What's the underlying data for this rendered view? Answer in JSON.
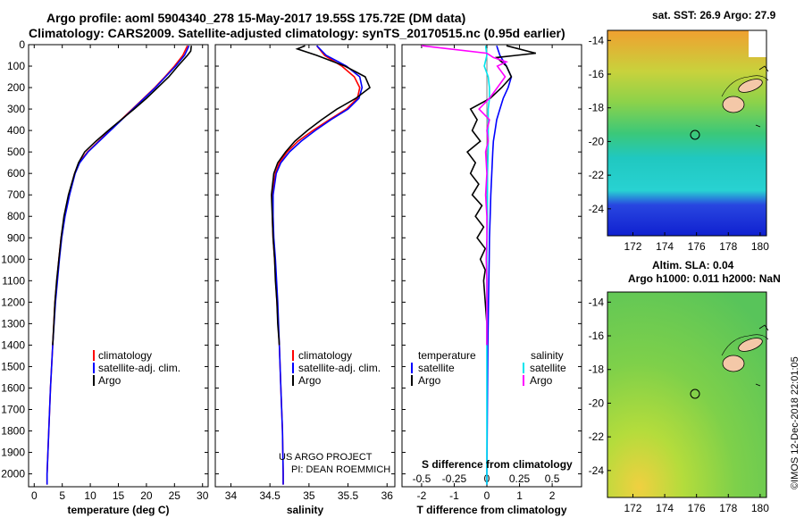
{
  "header": {
    "line1": "Argo profile: aoml 5904340_278 15-May-2017 19.55S 175.72E (DM data)",
    "line2": "Climatology: CARS2009. Satellite-adjusted climatology: synTS_20170515.nc (0.95d earlier)"
  },
  "maps": {
    "sst_title": "sat. SST: 26.9 Argo: 27.9",
    "sla_title1": "Altim. SLA: 0.04",
    "sla_title2": "Argo h1000: 0.011 h2000: NaN",
    "lon_ticks": [
      "172",
      "174",
      "176",
      "178",
      "180"
    ],
    "lat_ticks": [
      "-14",
      "-16",
      "-18",
      "-20",
      "-22",
      "-24"
    ],
    "argo_position": {
      "lon": 175.72,
      "lat": -19.55
    }
  },
  "watermark": "©IMOS 12-Dec-2018 22:01:05",
  "credit": [
    "US ARGO PROJECT",
    "PI: DEAN ROEMMICH"
  ],
  "depth_ticks": [
    "0",
    "100",
    "200",
    "300",
    "400",
    "500",
    "600",
    "700",
    "800",
    "900",
    "1000",
    "1100",
    "1200",
    "1300",
    "1400",
    "1500",
    "1600",
    "1700",
    "1800",
    "1900",
    "2000"
  ],
  "legend_profiles": [
    "climatology",
    "satellite-adj. clim.",
    "Argo"
  ],
  "legend_diff": {
    "col1_title": "temperature",
    "col2_title": "salinity",
    "items": [
      "satellite",
      "Argo"
    ]
  },
  "colors": {
    "climatology": "#ff0000",
    "satellite": "#0000ff",
    "argo": "#000000",
    "sal_satellite": "#00e5ee",
    "sal_argo": "#ff00ff"
  },
  "chart_data": [
    {
      "type": "line",
      "xlabel": "temperature (deg C)",
      "ylabel": "",
      "xlim": [
        -1,
        31
      ],
      "ylim": [
        2060,
        0
      ],
      "xticks": [
        "0",
        "5",
        "10",
        "15",
        "20",
        "25",
        "30"
      ],
      "series": [
        {
          "name": "climatology",
          "depth": [
            5,
            50,
            100,
            150,
            200,
            250,
            300,
            350,
            400,
            450,
            500,
            550,
            600,
            700,
            800,
            900,
            1000,
            1200,
            1400,
            1600,
            1800,
            2000,
            2050
          ],
          "values": [
            27.3,
            26.5,
            25.0,
            23.3,
            21.5,
            19.5,
            17.5,
            15.5,
            13.5,
            11.5,
            9.5,
            8.0,
            7.2,
            6.2,
            5.4,
            4.8,
            4.4,
            3.7,
            3.3,
            2.9,
            2.6,
            2.3,
            2.3
          ]
        },
        {
          "name": "satellite-adj. clim.",
          "depth": [
            5,
            50,
            100,
            150,
            200,
            250,
            300,
            350,
            400,
            450,
            500,
            550,
            600,
            700,
            800,
            900,
            1000,
            1200,
            1400,
            1600,
            1800,
            2000,
            2050
          ],
          "values": [
            27.6,
            26.8,
            25.2,
            23.4,
            21.6,
            19.6,
            17.6,
            15.6,
            13.6,
            11.6,
            9.6,
            8.1,
            7.3,
            6.3,
            5.5,
            4.9,
            4.5,
            3.8,
            3.3,
            2.9,
            2.6,
            2.3,
            2.3
          ]
        },
        {
          "name": "Argo",
          "depth": [
            5,
            30,
            50,
            100,
            150,
            200,
            250,
            300,
            350,
            400,
            450,
            500,
            550,
            600,
            700,
            800,
            900,
            1000,
            1100,
            1200,
            1300,
            1400
          ],
          "values": [
            28.0,
            27.9,
            27.3,
            25.6,
            24.0,
            22.0,
            20.0,
            17.8,
            15.5,
            13.2,
            11.0,
            9.0,
            7.9,
            7.2,
            6.1,
            5.3,
            4.8,
            4.4,
            4.0,
            3.7,
            3.5,
            3.3
          ]
        }
      ]
    },
    {
      "type": "line",
      "xlabel": "salinity",
      "ylabel": "",
      "xlim": [
        33.8,
        36.1
      ],
      "ylim": [
        2060,
        0
      ],
      "xticks": [
        "34",
        "34.5",
        "35",
        "35.5",
        "36"
      ],
      "series": [
        {
          "name": "climatology",
          "depth": [
            5,
            50,
            100,
            150,
            200,
            250,
            300,
            350,
            400,
            450,
            500,
            550,
            600,
            700,
            800,
            900,
            1000,
            1200,
            1400,
            1600,
            1800,
            2000,
            2050
          ],
          "values": [
            35.1,
            35.2,
            35.42,
            35.58,
            35.65,
            35.62,
            35.48,
            35.26,
            35.05,
            34.86,
            34.72,
            34.62,
            34.57,
            34.53,
            34.53,
            34.54,
            34.56,
            34.59,
            34.62,
            34.64,
            34.66,
            34.67,
            34.67
          ]
        },
        {
          "name": "satellite-adj. clim.",
          "depth": [
            5,
            50,
            100,
            150,
            200,
            250,
            300,
            350,
            400,
            450,
            500,
            550,
            600,
            700,
            800,
            900,
            1000,
            1200,
            1400,
            1600,
            1800,
            2000,
            2050
          ],
          "values": [
            35.1,
            35.22,
            35.48,
            35.65,
            35.68,
            35.64,
            35.5,
            35.28,
            35.08,
            34.9,
            34.75,
            34.64,
            34.58,
            34.54,
            34.54,
            34.55,
            34.57,
            34.6,
            34.62,
            34.64,
            34.66,
            34.67,
            34.67
          ]
        },
        {
          "name": "Argo",
          "depth": [
            5,
            20,
            50,
            100,
            150,
            200,
            250,
            300,
            350,
            400,
            450,
            500,
            550,
            600,
            700,
            800,
            900,
            1000,
            1100,
            1200,
            1300,
            1400
          ],
          "values": [
            34.95,
            34.85,
            35.1,
            35.46,
            35.72,
            35.78,
            35.6,
            35.36,
            35.16,
            34.98,
            34.82,
            34.7,
            34.6,
            34.55,
            34.52,
            34.53,
            34.54,
            34.56,
            34.57,
            34.59,
            34.6,
            34.62
          ]
        }
      ]
    },
    {
      "type": "line",
      "xlabel": "T difference from climatology",
      "title2": "S difference from climatology",
      "xlim": [
        -2.6,
        2.9
      ],
      "ylim": [
        2060,
        0
      ],
      "xticks": [
        "-2",
        "-1",
        "0",
        "1",
        "2"
      ],
      "xticks_top": [
        "-0.5",
        "-0.25",
        "0",
        "0.25",
        "0.5"
      ],
      "series": [
        {
          "name": "temperature satellite",
          "depth": [
            5,
            50,
            100,
            150,
            200,
            250,
            300,
            350,
            400,
            450,
            500,
            600,
            700,
            800,
            900,
            1000,
            1200,
            1400,
            1600,
            2000,
            2050
          ],
          "values": [
            0.3,
            0.4,
            0.6,
            0.75,
            0.65,
            0.5,
            0.4,
            0.3,
            0.25,
            0.2,
            0.18,
            0.15,
            0.12,
            0.1,
            0.08,
            0.07,
            0.05,
            0.03,
            0.02,
            0.0,
            0.0
          ]
        },
        {
          "name": "temperature Argo",
          "depth": [
            5,
            40,
            50,
            60,
            100,
            150,
            200,
            250,
            300,
            350,
            400,
            450,
            500,
            550,
            600,
            650,
            700,
            750,
            800,
            850,
            900,
            950,
            1000,
            1050,
            1100,
            1200,
            1300,
            1400
          ],
          "values": [
            0.6,
            1.5,
            0.9,
            0.3,
            0.6,
            0.75,
            0.45,
            0.1,
            -0.5,
            -0.3,
            -0.45,
            -0.2,
            -0.6,
            -0.35,
            -0.5,
            -0.25,
            -0.45,
            -0.15,
            -0.35,
            -0.1,
            -0.3,
            -0.05,
            -0.2,
            -0.05,
            -0.1,
            -0.05,
            0.0,
            0.0
          ]
        },
        {
          "name": "salinity satellite",
          "depth": [
            5,
            50,
            100,
            150,
            200,
            250,
            300,
            400,
            500,
            600,
            800,
            1000,
            1200,
            1500,
            1800,
            2000,
            2050
          ],
          "values": [
            -0.01,
            0.0,
            -0.02,
            0.01,
            0.02,
            0.02,
            0.01,
            0.01,
            0.01,
            0.005,
            0.005,
            0.0,
            0.0,
            0.0,
            0.0,
            0.0,
            0.0
          ]
        },
        {
          "name": "salinity Argo",
          "depth": [
            5,
            40,
            60,
            80,
            100,
            150,
            200,
            250,
            300,
            350,
            400,
            450,
            500,
            600,
            700,
            800,
            900,
            1000,
            1100,
            1200,
            1300,
            1400
          ],
          "values": [
            -0.5,
            0.0,
            0.05,
            0.15,
            0.08,
            0.14,
            0.08,
            0.02,
            -0.06,
            0.02,
            0.0,
            0.01,
            -0.01,
            0.0,
            -0.01,
            0.0,
            0.0,
            -0.005,
            0.0,
            0.0,
            0.0,
            0.0
          ]
        }
      ]
    }
  ]
}
